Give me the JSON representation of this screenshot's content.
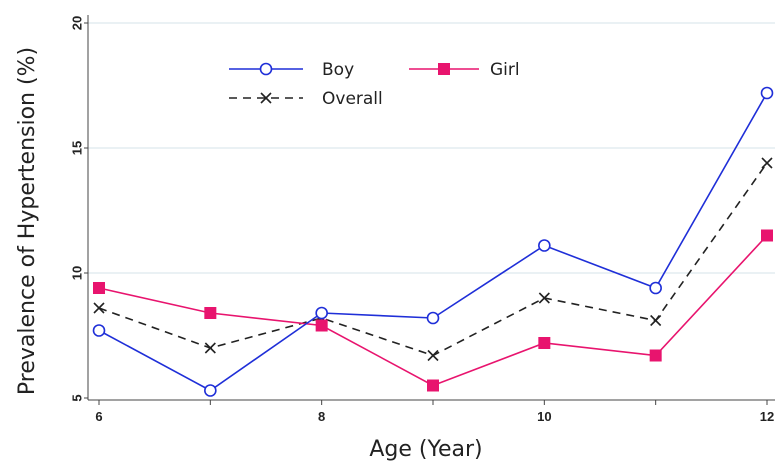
{
  "chart_data": {
    "type": "line",
    "title": "",
    "xlabel": "Age (Year)",
    "ylabel": "Prevalence of Hypertension (%)",
    "x": [
      6,
      7,
      8,
      9,
      10,
      11,
      12
    ],
    "x_ticks": [
      "6",
      "8",
      "10",
      "12"
    ],
    "y_ticks": [
      "5",
      "10",
      "15",
      "20"
    ],
    "xlim": [
      6,
      12
    ],
    "ylim": [
      5,
      20
    ],
    "grid": "horizontal",
    "legend_position": "top-left",
    "series": [
      {
        "name": "Boy",
        "values": [
          7.7,
          5.3,
          8.4,
          8.2,
          11.1,
          9.4,
          17.2
        ],
        "color": "#1f2fd8",
        "marker": "circle",
        "line": "solid"
      },
      {
        "name": "Girl",
        "values": [
          9.4,
          8.4,
          7.9,
          5.5,
          7.2,
          6.7,
          11.5
        ],
        "color": "#e8146e",
        "marker": "square",
        "line": "solid"
      },
      {
        "name": "Overall",
        "values": [
          8.6,
          7.0,
          8.2,
          6.7,
          9.0,
          8.1,
          14.4
        ],
        "color": "#222222",
        "marker": "x",
        "line": "dashed"
      }
    ]
  }
}
